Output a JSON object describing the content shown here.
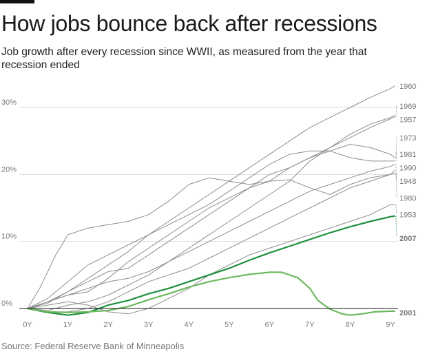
{
  "header": {
    "title": "How jobs bounce back after recessions",
    "subtitle": "Job growth after every recession since WWII, as measured from the year that recession ended"
  },
  "footer": {
    "source": "Source: Federal Reserve Bank of Minneapolis"
  },
  "colors": {
    "gray": "#8c8c8c",
    "highlight": "#1e8f3e",
    "highlight_light": "#6cb85e",
    "axis": "#111111",
    "grid": "#dddddd"
  },
  "chart_data": {
    "type": "line",
    "title": "How jobs bounce back after recessions",
    "xlabel": "",
    "ylabel": "",
    "xlim": [
      0,
      9.2
    ],
    "ylim": [
      -1.2,
      33
    ],
    "x_ticks": [
      0,
      1,
      2,
      3,
      4,
      5,
      6,
      7,
      8,
      9
    ],
    "x_tick_labels": [
      "0Y",
      "1Y",
      "2Y",
      "3Y",
      "4Y",
      "5Y",
      "6Y",
      "7Y",
      "8Y",
      "9Y"
    ],
    "y_ticks": [
      0,
      10,
      20,
      30
    ],
    "y_tick_labels": [
      "0%",
      "10%",
      "20%",
      "30%"
    ],
    "grid": true,
    "series": [
      {
        "name": "1960",
        "highlight": false,
        "end_label_y": 33.2,
        "x": [
          0,
          0.5,
          1,
          1.5,
          2,
          2.5,
          3,
          3.5,
          4,
          4.5,
          5,
          5.5,
          6,
          6.5,
          7,
          7.5,
          8,
          8.5,
          9,
          9.1
        ],
        "y": [
          0,
          0.8,
          2.5,
          4.5,
          6.5,
          8.5,
          11,
          13,
          15,
          17,
          19,
          21,
          23,
          25,
          27,
          28.5,
          30,
          31.5,
          32.8,
          33.2
        ]
      },
      {
        "name": "1969",
        "highlight": false,
        "end_label_y": 30.2,
        "x": [
          0,
          0.5,
          1,
          1.5,
          2,
          2.5,
          3,
          3.5,
          4,
          4.5,
          5,
          5.5,
          6,
          6.5,
          7,
          7.5,
          8,
          8.5,
          9,
          9.1
        ],
        "y": [
          0,
          1,
          2.5,
          4,
          5.5,
          6,
          8,
          10,
          12,
          14,
          16,
          18,
          20,
          21,
          22.5,
          24,
          25.5,
          27,
          28.3,
          28.6
        ]
      },
      {
        "name": "1957",
        "highlight": false,
        "end_label_y": 28.2,
        "x": [
          0,
          0.5,
          1,
          1.5,
          2,
          2.5,
          3,
          3.5,
          4,
          4.5,
          5,
          5.5,
          6,
          6.5,
          7,
          7.5,
          8,
          8.5,
          9,
          9.1
        ],
        "y": [
          0,
          -0.3,
          0.5,
          1,
          2,
          3.5,
          5,
          7,
          9,
          11,
          13,
          15,
          17,
          19,
          22,
          24,
          26,
          27.5,
          28.5,
          28.8
        ]
      },
      {
        "name": "1973",
        "highlight": false,
        "end_label_y": 25.5,
        "x": [
          0,
          0.5,
          1,
          1.5,
          2,
          2.5,
          3,
          3.5,
          4,
          4.5,
          5,
          5.5,
          6,
          6.5,
          7,
          7.5,
          8,
          8.5,
          9,
          9.1
        ],
        "y": [
          0,
          1,
          2,
          2.5,
          4.5,
          7,
          9,
          11,
          13,
          15,
          16.5,
          18,
          19,
          21,
          22.5,
          23.5,
          24.5,
          24,
          23,
          22.5
        ]
      },
      {
        "name": "1981",
        "highlight": false,
        "end_label_y": 23.0,
        "x": [
          0,
          0.5,
          1,
          1.5,
          2,
          2.5,
          3,
          3.5,
          4,
          4.5,
          5,
          5.5,
          6,
          6.5,
          7,
          7.5,
          8,
          8.5,
          9,
          9.1
        ],
        "y": [
          0,
          1.5,
          4,
          6.5,
          8,
          9.5,
          11,
          12.5,
          14,
          15.5,
          17.5,
          19.5,
          21.5,
          23,
          23.5,
          23.5,
          22.5,
          22,
          22,
          22
        ]
      },
      {
        "name": "1990",
        "highlight": false,
        "end_label_y": 21.0,
        "x": [
          0,
          0.5,
          1,
          1.5,
          2,
          2.5,
          3,
          3.5,
          4,
          4.5,
          5,
          5.5,
          6,
          6.5,
          7,
          7.5,
          8,
          8.5,
          9,
          9.1
        ],
        "y": [
          0,
          -0.5,
          -0.5,
          0,
          1,
          2.5,
          4,
          5,
          6,
          7.5,
          9,
          10.5,
          12,
          13.5,
          15,
          16.5,
          18,
          19,
          20,
          20.6
        ]
      },
      {
        "name": "1948",
        "highlight": false,
        "end_label_y": 19.0,
        "x": [
          0,
          0.3,
          0.7,
          1,
          1.5,
          2,
          2.5,
          3,
          3.5,
          4,
          4.5,
          5,
          5.5,
          6,
          6.5,
          7,
          7.5,
          8,
          8.5,
          9,
          9.1
        ],
        "y": [
          0,
          3,
          8,
          11,
          12,
          12.5,
          13,
          14,
          16,
          18.5,
          19.5,
          19,
          18.5,
          19,
          19.2,
          18,
          17,
          18.5,
          19.5,
          20,
          20.2
        ]
      },
      {
        "name": "1980",
        "highlight": false,
        "end_label_y": 16.5,
        "x": [
          0,
          0.5,
          1,
          1.5,
          2,
          2.5,
          3,
          3.5,
          4,
          4.5,
          5,
          5.5,
          6,
          6.5,
          7,
          7.5,
          8,
          8.5,
          9,
          9.1
        ],
        "y": [
          0,
          1,
          2,
          3,
          4,
          4.5,
          5.5,
          7,
          8.5,
          10,
          11.5,
          13,
          14.5,
          16,
          17.5,
          18.5,
          19.5,
          20.5,
          21.2,
          21.5
        ]
      },
      {
        "name": "1953",
        "highlight": false,
        "end_label_y": 14.0,
        "x": [
          0,
          0.5,
          1,
          1.5,
          2,
          2.5,
          3,
          3.5,
          4,
          4.5,
          5,
          5.5,
          6,
          6.5,
          7,
          7.5,
          8,
          8.5,
          9,
          9.1
        ],
        "y": [
          0,
          0.5,
          1,
          0.5,
          -0.5,
          -0.8,
          0,
          1.5,
          3,
          5,
          6.5,
          8,
          9,
          10,
          11,
          12,
          13,
          14,
          15.5,
          15.5
        ]
      },
      {
        "name": "2007",
        "highlight": true,
        "end_label_y": 10.5,
        "x": [
          0,
          0.5,
          1,
          1.5,
          2,
          2.5,
          3,
          3.5,
          4,
          4.5,
          5,
          5.5,
          6,
          6.5,
          7,
          7.5,
          8,
          8.5,
          9,
          9.1
        ],
        "y": [
          0,
          -0.6,
          -1,
          -0.6,
          0.5,
          1.2,
          2.2,
          3,
          4,
          5,
          6,
          7.2,
          8.3,
          9.3,
          10.3,
          11.3,
          12.2,
          13,
          13.7,
          13.8
        ]
      },
      {
        "name": "2001",
        "highlight": true,
        "light": true,
        "end_label_y": -0.6,
        "x": [
          0,
          0.5,
          1,
          1.5,
          2,
          2.5,
          3,
          3.5,
          4,
          4.5,
          5,
          5.5,
          6,
          6.3,
          6.7,
          7,
          7.2,
          7.5,
          7.8,
          8,
          8.3,
          8.6,
          9,
          9.1
        ],
        "y": [
          0,
          -0.5,
          -0.6,
          -0.5,
          -0.3,
          0.3,
          1.3,
          2.2,
          3.2,
          4,
          4.6,
          5.1,
          5.4,
          5.4,
          4.6,
          3,
          1.2,
          -0.1,
          -0.8,
          -1,
          -0.8,
          -0.5,
          -0.4,
          -0.4
        ]
      }
    ]
  }
}
